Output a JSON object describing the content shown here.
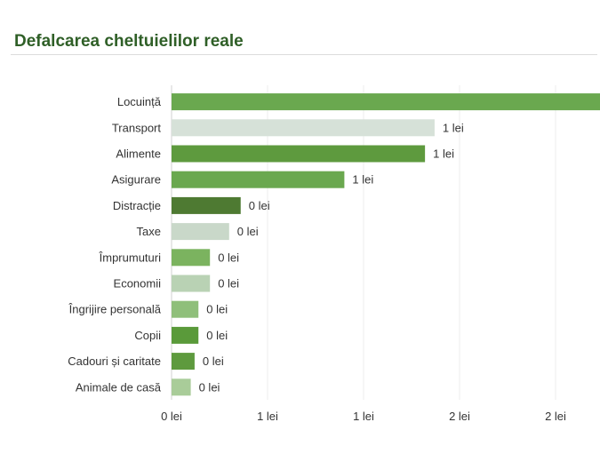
{
  "header": {
    "title": "Defalcarea cheltuielilor reale"
  },
  "chart_data": {
    "type": "bar",
    "orientation": "horizontal",
    "title": "Defalcarea cheltuielilor reale",
    "xlabel": "",
    "ylabel": "",
    "grid": true,
    "xlim": [
      0,
      2.3
    ],
    "x_ticks": [
      0,
      0.5,
      1.0,
      1.5,
      2.0
    ],
    "x_tick_labels": [
      "0 lei",
      "1 lei",
      "1 lei",
      "2 lei",
      "2 lei"
    ],
    "categories": [
      "Locuință",
      "Transport",
      "Alimente",
      "Asigurare",
      "Distracție",
      "Taxe",
      "Împrumuturi",
      "Economii",
      "Îngrijire personală",
      "Copii",
      "Cadouri și caritate",
      "Animale de casă"
    ],
    "values": [
      2.32,
      1.37,
      1.32,
      0.9,
      0.36,
      0.3,
      0.2,
      0.2,
      0.14,
      0.14,
      0.12,
      0.1
    ],
    "value_labels": [
      "",
      "1 lei",
      "1 lei",
      "1 lei",
      "0 lei",
      "0 lei",
      "0 lei",
      "0 lei",
      "0 lei",
      "0 lei",
      "0 lei",
      "0 lei"
    ],
    "colors": [
      "#6aa84f",
      "#d6e1d8",
      "#5e9a3e",
      "#6aa84f",
      "#4e7a32",
      "#c9d8c9",
      "#7bb35f",
      "#b9d2b4",
      "#8fbf7a",
      "#5a9a3a",
      "#5e9a3e",
      "#a9cc99"
    ]
  }
}
